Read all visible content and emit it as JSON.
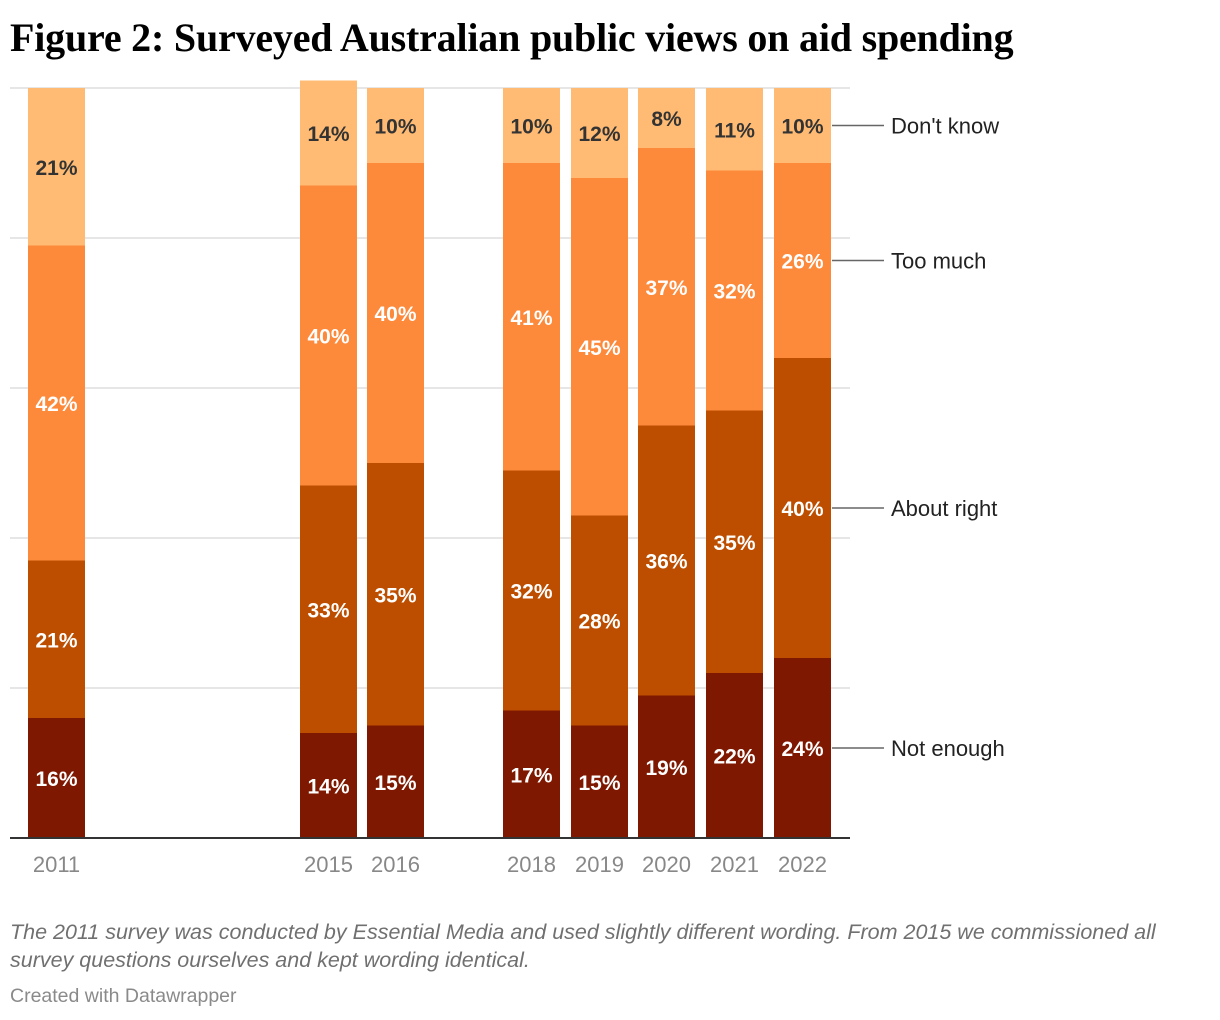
{
  "title": "Figure 2: Surveyed Australian public views on aid spending",
  "note": "The 2011 survey was conducted by Essential Media and used slightly different wording. From 2015 we commissioned all survey questions ourselves and kept wording identical.",
  "credit": "Created with Datawrapper",
  "colors": {
    "not_enough": "#7f1800",
    "about_right": "#bd4e00",
    "too_much": "#fd893b",
    "dont_know": "#ffbb73",
    "grid": "#dddddd",
    "axis": "#333333"
  },
  "chart_data": {
    "type": "bar",
    "stacked": true,
    "categories": [
      "2011",
      "2015",
      "2016",
      "2018",
      "2019",
      "2020",
      "2021",
      "2022"
    ],
    "series": [
      {
        "name": "Not enough",
        "values": [
          16,
          14,
          15,
          17,
          15,
          19,
          22,
          24
        ]
      },
      {
        "name": "About right",
        "values": [
          21,
          33,
          35,
          32,
          28,
          36,
          35,
          40
        ]
      },
      {
        "name": "Too much",
        "values": [
          42,
          40,
          40,
          41,
          45,
          37,
          32,
          26
        ]
      },
      {
        "name": "Don't know",
        "values": [
          21,
          14,
          10,
          10,
          12,
          8,
          11,
          10
        ]
      }
    ],
    "labels": [
      [
        "16%",
        "14%",
        "15%",
        "17%",
        "15%",
        "19%",
        "22%",
        "24%"
      ],
      [
        "21%",
        "33%",
        "35%",
        "32%",
        "28%",
        "36%",
        "35%",
        "40%"
      ],
      [
        "42%",
        "40%",
        "40%",
        "41%",
        "45%",
        "37%",
        "32%",
        "26%"
      ],
      [
        "21%",
        "14%",
        "10%",
        "10%",
        "12%",
        "8%",
        "11%",
        "10%"
      ]
    ],
    "legend_placement": "right (direct labels)",
    "grid": true,
    "ylim": [
      0,
      100
    ]
  }
}
